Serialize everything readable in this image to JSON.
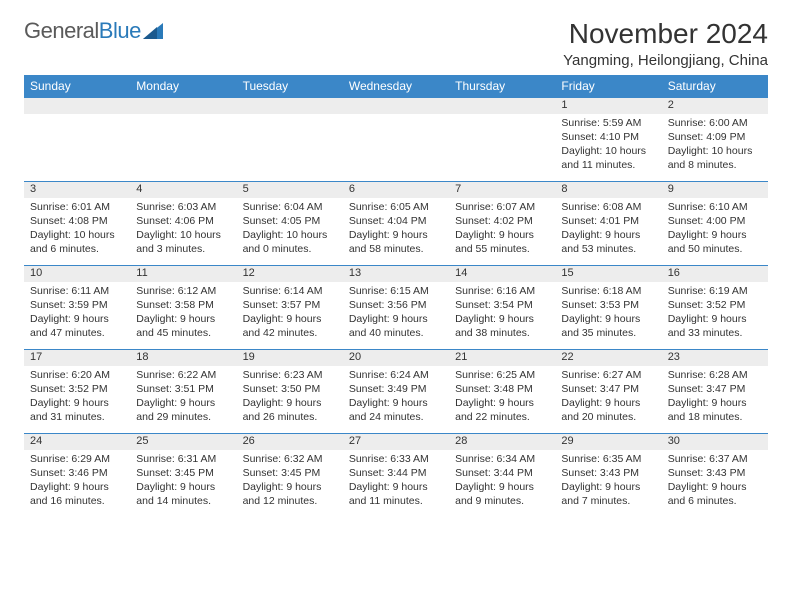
{
  "logo": {
    "text1": "General",
    "text2": "Blue"
  },
  "title": "November 2024",
  "location": "Yangming, Heilongjiang, China",
  "colors": {
    "header_bg": "#3b87c8",
    "header_text": "#ffffff",
    "daynum_bg": "#ededed",
    "cell_border": "#3b87c8",
    "text": "#333333",
    "logo_gray": "#5a5a5a",
    "logo_blue": "#2a7ab9"
  },
  "weekdays": [
    "Sunday",
    "Monday",
    "Tuesday",
    "Wednesday",
    "Thursday",
    "Friday",
    "Saturday"
  ],
  "weeks": [
    [
      null,
      null,
      null,
      null,
      null,
      {
        "n": "1",
        "sr": "Sunrise: 5:59 AM",
        "ss": "Sunset: 4:10 PM",
        "dl": "Daylight: 10 hours and 11 minutes."
      },
      {
        "n": "2",
        "sr": "Sunrise: 6:00 AM",
        "ss": "Sunset: 4:09 PM",
        "dl": "Daylight: 10 hours and 8 minutes."
      }
    ],
    [
      {
        "n": "3",
        "sr": "Sunrise: 6:01 AM",
        "ss": "Sunset: 4:08 PM",
        "dl": "Daylight: 10 hours and 6 minutes."
      },
      {
        "n": "4",
        "sr": "Sunrise: 6:03 AM",
        "ss": "Sunset: 4:06 PM",
        "dl": "Daylight: 10 hours and 3 minutes."
      },
      {
        "n": "5",
        "sr": "Sunrise: 6:04 AM",
        "ss": "Sunset: 4:05 PM",
        "dl": "Daylight: 10 hours and 0 minutes."
      },
      {
        "n": "6",
        "sr": "Sunrise: 6:05 AM",
        "ss": "Sunset: 4:04 PM",
        "dl": "Daylight: 9 hours and 58 minutes."
      },
      {
        "n": "7",
        "sr": "Sunrise: 6:07 AM",
        "ss": "Sunset: 4:02 PM",
        "dl": "Daylight: 9 hours and 55 minutes."
      },
      {
        "n": "8",
        "sr": "Sunrise: 6:08 AM",
        "ss": "Sunset: 4:01 PM",
        "dl": "Daylight: 9 hours and 53 minutes."
      },
      {
        "n": "9",
        "sr": "Sunrise: 6:10 AM",
        "ss": "Sunset: 4:00 PM",
        "dl": "Daylight: 9 hours and 50 minutes."
      }
    ],
    [
      {
        "n": "10",
        "sr": "Sunrise: 6:11 AM",
        "ss": "Sunset: 3:59 PM",
        "dl": "Daylight: 9 hours and 47 minutes."
      },
      {
        "n": "11",
        "sr": "Sunrise: 6:12 AM",
        "ss": "Sunset: 3:58 PM",
        "dl": "Daylight: 9 hours and 45 minutes."
      },
      {
        "n": "12",
        "sr": "Sunrise: 6:14 AM",
        "ss": "Sunset: 3:57 PM",
        "dl": "Daylight: 9 hours and 42 minutes."
      },
      {
        "n": "13",
        "sr": "Sunrise: 6:15 AM",
        "ss": "Sunset: 3:56 PM",
        "dl": "Daylight: 9 hours and 40 minutes."
      },
      {
        "n": "14",
        "sr": "Sunrise: 6:16 AM",
        "ss": "Sunset: 3:54 PM",
        "dl": "Daylight: 9 hours and 38 minutes."
      },
      {
        "n": "15",
        "sr": "Sunrise: 6:18 AM",
        "ss": "Sunset: 3:53 PM",
        "dl": "Daylight: 9 hours and 35 minutes."
      },
      {
        "n": "16",
        "sr": "Sunrise: 6:19 AM",
        "ss": "Sunset: 3:52 PM",
        "dl": "Daylight: 9 hours and 33 minutes."
      }
    ],
    [
      {
        "n": "17",
        "sr": "Sunrise: 6:20 AM",
        "ss": "Sunset: 3:52 PM",
        "dl": "Daylight: 9 hours and 31 minutes."
      },
      {
        "n": "18",
        "sr": "Sunrise: 6:22 AM",
        "ss": "Sunset: 3:51 PM",
        "dl": "Daylight: 9 hours and 29 minutes."
      },
      {
        "n": "19",
        "sr": "Sunrise: 6:23 AM",
        "ss": "Sunset: 3:50 PM",
        "dl": "Daylight: 9 hours and 26 minutes."
      },
      {
        "n": "20",
        "sr": "Sunrise: 6:24 AM",
        "ss": "Sunset: 3:49 PM",
        "dl": "Daylight: 9 hours and 24 minutes."
      },
      {
        "n": "21",
        "sr": "Sunrise: 6:25 AM",
        "ss": "Sunset: 3:48 PM",
        "dl": "Daylight: 9 hours and 22 minutes."
      },
      {
        "n": "22",
        "sr": "Sunrise: 6:27 AM",
        "ss": "Sunset: 3:47 PM",
        "dl": "Daylight: 9 hours and 20 minutes."
      },
      {
        "n": "23",
        "sr": "Sunrise: 6:28 AM",
        "ss": "Sunset: 3:47 PM",
        "dl": "Daylight: 9 hours and 18 minutes."
      }
    ],
    [
      {
        "n": "24",
        "sr": "Sunrise: 6:29 AM",
        "ss": "Sunset: 3:46 PM",
        "dl": "Daylight: 9 hours and 16 minutes."
      },
      {
        "n": "25",
        "sr": "Sunrise: 6:31 AM",
        "ss": "Sunset: 3:45 PM",
        "dl": "Daylight: 9 hours and 14 minutes."
      },
      {
        "n": "26",
        "sr": "Sunrise: 6:32 AM",
        "ss": "Sunset: 3:45 PM",
        "dl": "Daylight: 9 hours and 12 minutes."
      },
      {
        "n": "27",
        "sr": "Sunrise: 6:33 AM",
        "ss": "Sunset: 3:44 PM",
        "dl": "Daylight: 9 hours and 11 minutes."
      },
      {
        "n": "28",
        "sr": "Sunrise: 6:34 AM",
        "ss": "Sunset: 3:44 PM",
        "dl": "Daylight: 9 hours and 9 minutes."
      },
      {
        "n": "29",
        "sr": "Sunrise: 6:35 AM",
        "ss": "Sunset: 3:43 PM",
        "dl": "Daylight: 9 hours and 7 minutes."
      },
      {
        "n": "30",
        "sr": "Sunrise: 6:37 AM",
        "ss": "Sunset: 3:43 PM",
        "dl": "Daylight: 9 hours and 6 minutes."
      }
    ]
  ]
}
